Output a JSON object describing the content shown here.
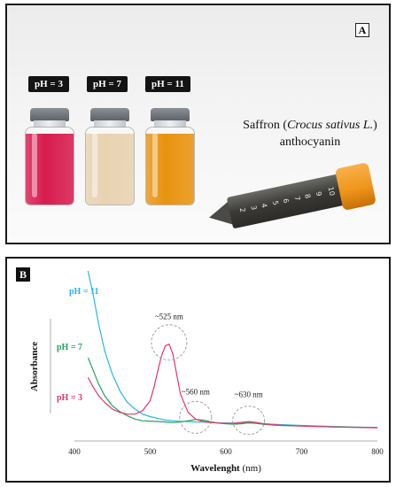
{
  "panel_a": {
    "letter": "A",
    "badges": [
      "pH = 3",
      "pH = 7",
      "pH = 11"
    ],
    "vial_colors": [
      "#d81b4e",
      "#e8d2b0",
      "#e8930f"
    ],
    "caption_line1_pre": "Saffron (",
    "caption_italic": "Crocus sativus L.",
    "caption_line1_post": ")",
    "caption_line2": "anthocyanin",
    "tube_scale": [
      "2",
      "3",
      "4",
      "5",
      "6",
      "7",
      "8",
      "9",
      "10"
    ],
    "tube_cap_color": "#f0961c",
    "tube_liquid_color": "#3a3936"
  },
  "panel_b": {
    "letter": "B"
  },
  "chart_data": {
    "type": "line",
    "xlabel": "Wavelenght",
    "xlabel_unit": "(nm)",
    "ylabel": "Absorbance",
    "xlim": [
      400,
      800
    ],
    "ylim": [
      0,
      1
    ],
    "xticks": [
      400,
      500,
      600,
      700,
      800
    ],
    "grid": false,
    "series": [
      {
        "name": "pH = 11",
        "color": "#29b6e6",
        "x": [
          418,
          425,
          432,
          440,
          450,
          460,
          470,
          480,
          490,
          500,
          510,
          520,
          530,
          540,
          550,
          560,
          570,
          580,
          590,
          600,
          610,
          620,
          630,
          640,
          650,
          670,
          700,
          740,
          770,
          800
        ],
        "y": [
          1.0,
          0.85,
          0.68,
          0.52,
          0.38,
          0.28,
          0.21,
          0.17,
          0.14,
          0.125,
          0.115,
          0.105,
          0.1,
          0.097,
          0.095,
          0.093,
          0.092,
          0.09,
          0.088,
          0.087,
          0.086,
          0.086,
          0.087,
          0.085,
          0.082,
          0.077,
          0.072,
          0.066,
          0.062,
          0.06
        ]
      },
      {
        "name": "pH = 7",
        "color": "#22a55a",
        "x": [
          418,
          425,
          432,
          440,
          450,
          460,
          470,
          480,
          490,
          500,
          510,
          520,
          530,
          540,
          550,
          560,
          570,
          580,
          590,
          600,
          610,
          620,
          630,
          640,
          650,
          670,
          700,
          740,
          770,
          800
        ],
        "y": [
          0.48,
          0.4,
          0.32,
          0.25,
          0.19,
          0.155,
          0.13,
          0.11,
          0.1,
          0.098,
          0.096,
          0.093,
          0.09,
          0.092,
          0.1,
          0.108,
          0.104,
          0.094,
          0.086,
          0.082,
          0.08,
          0.082,
          0.088,
          0.084,
          0.078,
          0.072,
          0.068,
          0.064,
          0.061,
          0.059
        ]
      },
      {
        "name": "pH = 3",
        "color": "#e8336e",
        "x": [
          418,
          425,
          432,
          440,
          450,
          460,
          470,
          480,
          490,
          500,
          505,
          510,
          515,
          520,
          525,
          530,
          535,
          540,
          550,
          560,
          570,
          580,
          590,
          600,
          610,
          620,
          630,
          640,
          650,
          670,
          700,
          740,
          770,
          800
        ],
        "y": [
          0.36,
          0.3,
          0.25,
          0.21,
          0.17,
          0.15,
          0.14,
          0.14,
          0.16,
          0.22,
          0.3,
          0.4,
          0.49,
          0.55,
          0.56,
          0.5,
          0.38,
          0.26,
          0.15,
          0.11,
          0.095,
          0.09,
          0.086,
          0.084,
          0.085,
          0.09,
          0.095,
          0.09,
          0.082,
          0.074,
          0.068,
          0.063,
          0.06,
          0.058
        ]
      }
    ],
    "annotations": [
      {
        "text": "~525 nm",
        "x": 525,
        "y": 0.56
      },
      {
        "text": "~560 nm",
        "x": 560,
        "y": 0.11
      },
      {
        "text": "~630 nm",
        "x": 630,
        "y": 0.092
      }
    ]
  }
}
